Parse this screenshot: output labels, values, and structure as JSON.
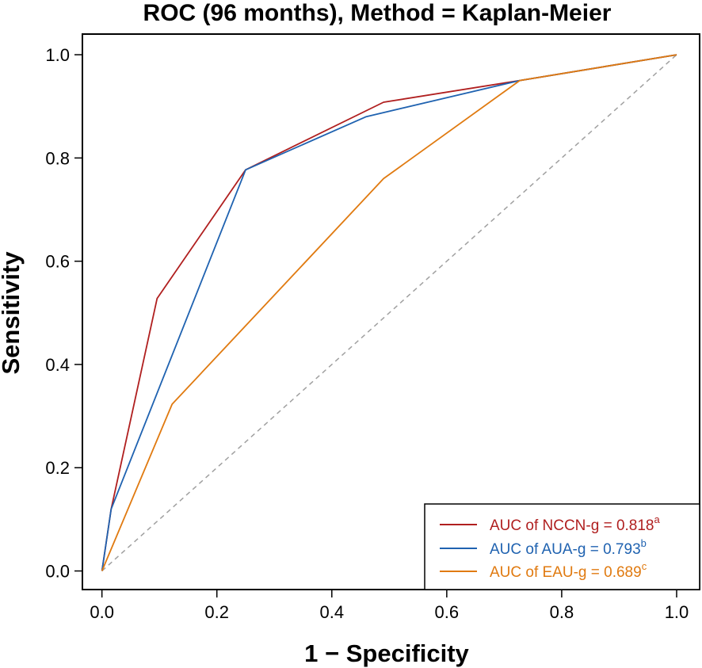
{
  "chart_data": {
    "type": "line",
    "title": "ROC (96 months), Method = Kaplan-Meier",
    "xlabel": "1 − Specificity",
    "ylabel": "Sensitivity",
    "xlim": [
      -0.034,
      1.04
    ],
    "ylim": [
      -0.036,
      1.04
    ],
    "xticks": [
      "0.0",
      "0.2",
      "0.4",
      "0.6",
      "0.8",
      "1.0"
    ],
    "yticks": [
      "0.0",
      "0.2",
      "0.4",
      "0.6",
      "0.8",
      "1.0"
    ],
    "reference_line": {
      "style": "dashed",
      "color": "#a0a0a0",
      "x": [
        0,
        1
      ],
      "y": [
        0,
        1
      ]
    },
    "legend_position": "bottom-right",
    "series": [
      {
        "name": "NCCN-g",
        "legend_label": "AUC of NCCN-g = 0.818",
        "superscript": "a",
        "color": "#b01f1f",
        "x": [
          0.0,
          0.016,
          0.096,
          0.25,
          0.49,
          0.727,
          1.0
        ],
        "y": [
          0.0,
          0.12,
          0.528,
          0.777,
          0.908,
          0.95,
          1.0
        ]
      },
      {
        "name": "AUA-g",
        "legend_label": "AUC of AUA-g = 0.793",
        "superscript": "b",
        "color": "#1f62b0",
        "x": [
          0.0,
          0.016,
          0.25,
          0.46,
          0.727,
          1.0
        ],
        "y": [
          0.0,
          0.12,
          0.777,
          0.88,
          0.95,
          1.0
        ]
      },
      {
        "name": "EAU-g",
        "legend_label": "AUC of EAU-g = 0.689",
        "superscript": "c",
        "color": "#e07a10",
        "x": [
          0.0,
          0.122,
          0.49,
          0.727,
          1.0
        ],
        "y": [
          0.0,
          0.323,
          0.76,
          0.95,
          1.0
        ]
      }
    ]
  }
}
